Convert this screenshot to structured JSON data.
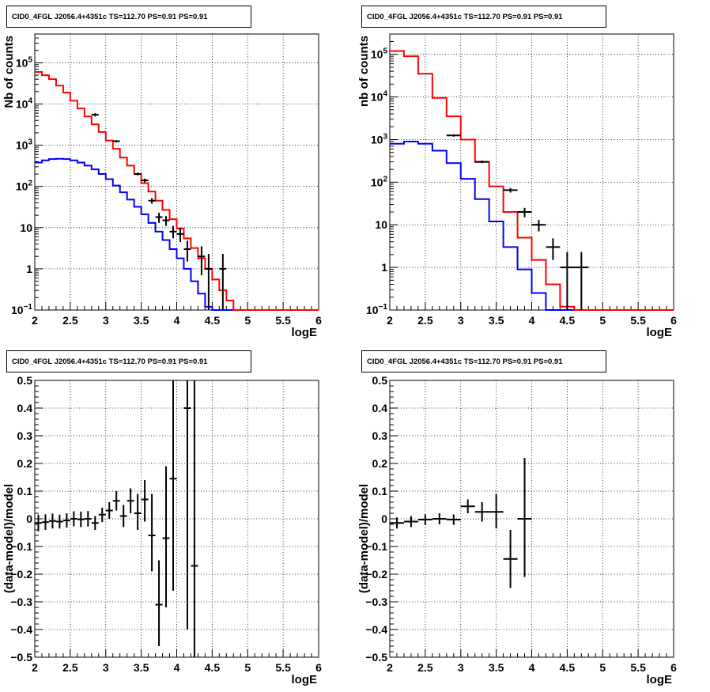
{
  "panel_title": "CID0_4FGL J2056.4+4351c TS=112.70 PS=0.91 PS=0.91",
  "chart_data": [
    {
      "type": "histogram-log",
      "title": "CID0_4FGL J2056.4+4351c TS=112.70 PS=0.91 PS=0.91",
      "xlabel": "logE",
      "ylabel": "Nb of counts",
      "xlim": [
        2,
        6
      ],
      "ylim": [
        0.1,
        500000
      ],
      "log_y": true,
      "grid": true,
      "x_ticks": [
        "2",
        "2.5",
        "3",
        "3.5",
        "4",
        "4.5",
        "5",
        "5.5",
        "6"
      ],
      "y_ticks": [
        {
          "value": 0.1,
          "base": "10",
          "exp": "−1"
        },
        {
          "value": 1,
          "label": "1"
        },
        {
          "value": 10,
          "label": "10"
        },
        {
          "value": 100,
          "base": "10",
          "exp": "2"
        },
        {
          "value": 1000,
          "base": "10",
          "exp": "3"
        },
        {
          "value": 10000,
          "base": "10",
          "exp": "4"
        },
        {
          "value": 100000,
          "base": "10",
          "exp": "5"
        }
      ],
      "bin_edges": [
        2.0,
        2.1,
        2.2,
        2.3,
        2.4,
        2.5,
        2.6,
        2.7,
        2.8,
        2.9,
        3.0,
        3.1,
        3.2,
        3.3,
        3.4,
        3.5,
        3.6,
        3.7,
        3.8,
        3.9,
        4.0,
        4.1,
        4.2,
        4.3,
        4.4,
        4.5,
        4.6,
        4.7,
        4.8,
        4.9,
        5.0,
        5.1,
        5.2,
        5.3,
        5.4,
        5.5,
        5.6,
        5.7,
        5.8,
        5.9,
        6.0
      ],
      "series": [
        {
          "color": "#ff0000",
          "values": [
            60000,
            50000,
            40000,
            28000,
            19000,
            12000,
            7800,
            5000,
            3200,
            2100,
            1300,
            820,
            500,
            320,
            200,
            120,
            75,
            45,
            27,
            16,
            9.5,
            5.5,
            3.2,
            1.8,
            1.0,
            0.55,
            0.3,
            0.17,
            0.1,
            0.1,
            0.1,
            0.1,
            0.1,
            0.1,
            0.1,
            0.1,
            0.1,
            0.1,
            0.1,
            0.1
          ]
        },
        {
          "color": "#0000ff",
          "values": [
            380,
            430,
            460,
            470,
            460,
            430,
            380,
            320,
            260,
            200,
            150,
            105,
            72,
            48,
            32,
            21,
            13,
            8,
            5,
            3,
            1.8,
            1.0,
            0.5,
            0.25,
            0.12,
            0.1,
            0.1,
            0.1,
            0.1,
            0.1,
            0.1,
            0.1,
            0.1,
            0.1,
            0.1,
            0.1,
            0.1,
            0.1,
            0.1,
            0.1
          ]
        }
      ],
      "data_points": [
        {
          "x": 2.85,
          "y": 5500,
          "ylo": 5000,
          "yhi": 6000
        },
        {
          "x": 3.15,
          "y": 1250,
          "ylo": 1170,
          "yhi": 1330
        },
        {
          "x": 3.45,
          "y": 200,
          "ylo": 185,
          "yhi": 215
        },
        {
          "x": 3.55,
          "y": 140,
          "ylo": 125,
          "yhi": 155
        },
        {
          "x": 3.65,
          "y": 45,
          "ylo": 38,
          "yhi": 52
        },
        {
          "x": 3.75,
          "y": 18,
          "ylo": 13,
          "yhi": 23
        },
        {
          "x": 3.85,
          "y": 15,
          "ylo": 11,
          "yhi": 19
        },
        {
          "x": 3.95,
          "y": 8,
          "ylo": 5.5,
          "yhi": 11
        },
        {
          "x": 4.05,
          "y": 7,
          "ylo": 4.5,
          "yhi": 10
        },
        {
          "x": 4.15,
          "y": 3,
          "ylo": 1.5,
          "yhi": 4.8
        },
        {
          "x": 4.35,
          "y": 2,
          "ylo": 0.7,
          "yhi": 3.5
        },
        {
          "x": 4.45,
          "y": 1,
          "ylo": 0.1,
          "yhi": 2.3
        },
        {
          "x": 4.65,
          "y": 1,
          "ylo": 0.1,
          "yhi": 2.3
        }
      ]
    },
    {
      "type": "histogram-log",
      "title": "CID0_4FGL J2056.4+4351c TS=112.70 PS=0.91 PS=0.91",
      "xlabel": "logE",
      "ylabel": "nb of counts",
      "xlim": [
        2,
        6
      ],
      "ylim": [
        0.1,
        300000
      ],
      "log_y": true,
      "grid": true,
      "x_ticks": [
        "2",
        "2.5",
        "3",
        "3.5",
        "4",
        "4.5",
        "5",
        "5.5",
        "6"
      ],
      "y_ticks": [
        {
          "value": 0.1,
          "base": "10",
          "exp": "−1"
        },
        {
          "value": 1,
          "label": "1"
        },
        {
          "value": 10,
          "label": "10"
        },
        {
          "value": 100,
          "base": "10",
          "exp": "2"
        },
        {
          "value": 1000,
          "base": "10",
          "exp": "3"
        },
        {
          "value": 10000,
          "base": "10",
          "exp": "4"
        },
        {
          "value": 100000,
          "base": "10",
          "exp": "5"
        }
      ],
      "bin_edges": [
        2.0,
        2.2,
        2.4,
        2.6,
        2.8,
        3.0,
        3.2,
        3.4,
        3.6,
        3.8,
        4.0,
        4.2,
        4.4,
        4.6,
        4.8,
        5.0,
        5.2,
        5.4,
        5.6,
        5.8,
        6.0
      ],
      "series": [
        {
          "color": "#ff0000",
          "values": [
            120000,
            90000,
            35000,
            9500,
            3500,
            1000,
            300,
            80,
            20,
            5,
            1.5,
            0.4,
            0.12,
            0.1,
            0.1,
            0.1,
            0.1,
            0.1,
            0.1,
            0.1
          ]
        },
        {
          "color": "#0000ff",
          "values": [
            800,
            900,
            800,
            550,
            280,
            120,
            40,
            12,
            3,
            0.9,
            0.25,
            0.1,
            0.1,
            0.1,
            0.1,
            0.1,
            0.1,
            0.1,
            0.1,
            0.1
          ]
        }
      ],
      "data_points": [
        {
          "x": 2.9,
          "y": 1250,
          "ylo": 1170,
          "yhi": 1330
        },
        {
          "x": 3.3,
          "y": 300,
          "ylo": 280,
          "yhi": 320
        },
        {
          "x": 3.7,
          "y": 65,
          "ylo": 57,
          "yhi": 73
        },
        {
          "x": 3.9,
          "y": 20,
          "ylo": 15,
          "yhi": 25
        },
        {
          "x": 4.1,
          "y": 10,
          "ylo": 7,
          "yhi": 13
        },
        {
          "x": 4.3,
          "y": 3,
          "ylo": 1.5,
          "yhi": 4.8
        },
        {
          "x": 4.5,
          "y": 1,
          "ylo": 0.1,
          "yhi": 2.3
        },
        {
          "x": 4.7,
          "y": 1,
          "ylo": 0.1,
          "yhi": 2.3
        }
      ]
    },
    {
      "type": "scatter-errorbars",
      "title": "CID0_4FGL J2056.4+4351c TS=112.70 PS=0.91 PS=0.91",
      "xlabel": "logE",
      "ylabel": "(data-model)/model",
      "xlim": [
        2,
        6
      ],
      "ylim": [
        -0.5,
        0.5
      ],
      "grid": true,
      "x_ticks": [
        "2",
        "2.5",
        "3",
        "3.5",
        "4",
        "4.5",
        "5",
        "5.5",
        "6"
      ],
      "y_ticks": [
        "−0.5",
        "−0.4",
        "−0.3",
        "−0.2",
        "−0.1",
        "0",
        "0.1",
        "0.2",
        "0.3",
        "0.4",
        "0.5"
      ],
      "points": [
        {
          "x": 2.05,
          "y": -0.015,
          "ylo": -0.045,
          "yhi": 0.015,
          "xerr": 0.05
        },
        {
          "x": 2.15,
          "y": -0.012,
          "ylo": -0.04,
          "yhi": 0.016,
          "xerr": 0.05
        },
        {
          "x": 2.25,
          "y": -0.008,
          "ylo": -0.035,
          "yhi": 0.019,
          "xerr": 0.05
        },
        {
          "x": 2.35,
          "y": -0.01,
          "ylo": -0.035,
          "yhi": 0.015,
          "xerr": 0.05
        },
        {
          "x": 2.45,
          "y": -0.006,
          "ylo": -0.032,
          "yhi": 0.02,
          "xerr": 0.05
        },
        {
          "x": 2.55,
          "y": 0.0,
          "ylo": -0.027,
          "yhi": 0.027,
          "xerr": 0.05
        },
        {
          "x": 2.65,
          "y": -0.002,
          "ylo": -0.03,
          "yhi": 0.026,
          "xerr": 0.05
        },
        {
          "x": 2.75,
          "y": 0.0,
          "ylo": -0.028,
          "yhi": 0.028,
          "xerr": 0.05
        },
        {
          "x": 2.85,
          "y": -0.015,
          "ylo": -0.04,
          "yhi": 0.01,
          "xerr": 0.05
        },
        {
          "x": 2.95,
          "y": 0.015,
          "ylo": -0.012,
          "yhi": 0.04,
          "xerr": 0.05
        },
        {
          "x": 3.05,
          "y": 0.03,
          "ylo": 0.0,
          "yhi": 0.06,
          "xerr": 0.05
        },
        {
          "x": 3.15,
          "y": 0.065,
          "ylo": 0.03,
          "yhi": 0.1,
          "xerr": 0.05
        },
        {
          "x": 3.25,
          "y": 0.01,
          "ylo": -0.03,
          "yhi": 0.05,
          "xerr": 0.05
        },
        {
          "x": 3.35,
          "y": 0.065,
          "ylo": 0.02,
          "yhi": 0.11,
          "xerr": 0.05
        },
        {
          "x": 3.45,
          "y": 0.02,
          "ylo": -0.04,
          "yhi": 0.09,
          "xerr": 0.05
        },
        {
          "x": 3.55,
          "y": 0.07,
          "ylo": -0.01,
          "yhi": 0.14,
          "xerr": 0.05
        },
        {
          "x": 3.65,
          "y": -0.06,
          "ylo": -0.19,
          "yhi": 0.09,
          "xerr": 0.05
        },
        {
          "x": 3.75,
          "y": -0.31,
          "ylo": -0.46,
          "yhi": -0.15,
          "xerr": 0.05
        },
        {
          "x": 3.85,
          "y": -0.07,
          "ylo": -0.32,
          "yhi": 0.19,
          "xerr": 0.05
        },
        {
          "x": 3.95,
          "y": 0.145,
          "ylo": -0.26,
          "yhi": 0.5,
          "xerr": 0.05
        },
        {
          "x": 4.15,
          "y": 0.4,
          "ylo": -0.4,
          "yhi": 0.5,
          "xerr": 0.05
        },
        {
          "x": 4.25,
          "y": -0.17,
          "ylo": -0.5,
          "yhi": 0.5,
          "xerr": 0.05
        }
      ]
    },
    {
      "type": "scatter-errorbars",
      "title": "CID0_4FGL J2056.4+4351c TS=112.70 PS=0.91 PS=0.91",
      "xlabel": "logE",
      "ylabel": "(data-model)/model",
      "xlim": [
        2,
        6
      ],
      "ylim": [
        -0.5,
        0.5
      ],
      "grid": true,
      "x_ticks": [
        "2",
        "2.5",
        "3",
        "3.5",
        "4",
        "4.5",
        "5",
        "5.5",
        "6"
      ],
      "y_ticks": [
        "−0.5",
        "−0.4",
        "−0.3",
        "−0.2",
        "−0.1",
        "0",
        "0.1",
        "0.2",
        "0.3",
        "0.4",
        "0.5"
      ],
      "points": [
        {
          "x": 2.1,
          "y": -0.015,
          "ylo": -0.035,
          "yhi": 0.005,
          "xerr": 0.1
        },
        {
          "x": 2.3,
          "y": -0.01,
          "ylo": -0.03,
          "yhi": 0.01,
          "xerr": 0.1
        },
        {
          "x": 2.5,
          "y": -0.003,
          "ylo": -0.022,
          "yhi": 0.016,
          "xerr": 0.1
        },
        {
          "x": 2.7,
          "y": 0.0,
          "ylo": -0.02,
          "yhi": 0.02,
          "xerr": 0.1
        },
        {
          "x": 2.9,
          "y": -0.003,
          "ylo": -0.022,
          "yhi": 0.016,
          "xerr": 0.1
        },
        {
          "x": 3.1,
          "y": 0.045,
          "ylo": 0.02,
          "yhi": 0.07,
          "xerr": 0.1
        },
        {
          "x": 3.3,
          "y": 0.025,
          "ylo": -0.01,
          "yhi": 0.06,
          "xerr": 0.1
        },
        {
          "x": 3.5,
          "y": 0.025,
          "ylo": -0.035,
          "yhi": 0.09,
          "xerr": 0.1
        },
        {
          "x": 3.7,
          "y": -0.145,
          "ylo": -0.25,
          "yhi": -0.04,
          "xerr": 0.1
        },
        {
          "x": 3.9,
          "y": 0.0,
          "ylo": -0.21,
          "yhi": 0.22,
          "xerr": 0.1
        }
      ]
    }
  ]
}
